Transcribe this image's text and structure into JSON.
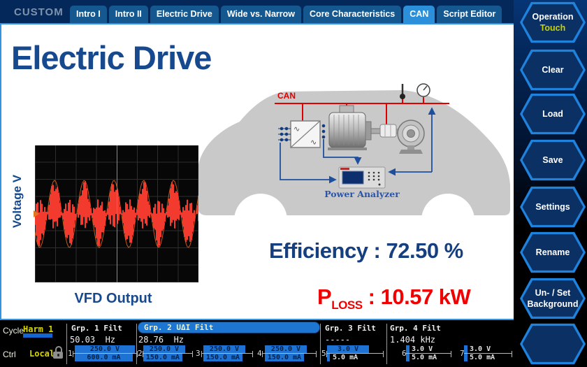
{
  "topbar": {
    "brand": "CUSTOM",
    "tabs": [
      {
        "label": "Intro I",
        "active": false
      },
      {
        "label": "Intro II",
        "active": false
      },
      {
        "label": "Electric Drive",
        "active": false
      },
      {
        "label": "Wide vs. Narrow",
        "active": false
      },
      {
        "label": "Core Characteristics",
        "active": false
      },
      {
        "label": "CAN",
        "active": true
      },
      {
        "label": "Script Editor",
        "active": false
      }
    ]
  },
  "sidebar": {
    "buttons": [
      {
        "label": "Operation",
        "accent": "Touch"
      },
      {
        "label": "Clear"
      },
      {
        "label": "Load"
      },
      {
        "label": "Save"
      },
      {
        "label": "Settings"
      },
      {
        "label": "Rename"
      },
      {
        "label": "Un- / Set",
        "label2": "Background"
      },
      {
        "label": ""
      }
    ]
  },
  "content": {
    "title": "Electric Drive",
    "diagram": {
      "can_label": "CAN",
      "analyzer_label": "Power Analyzer"
    },
    "scope": {
      "type": "line",
      "description": "PWM voltage waveform with sinusoidal envelope",
      "axis_label": "Voltage V",
      "caption": "VFD Output",
      "cycles": 5.5,
      "trace_color": "#f23b2e",
      "envelope_color": "#c85818"
    },
    "efficiency_text": "Efficiency : 72.50 %",
    "ploss_p": "P",
    "ploss_sub": "LOSS",
    "ploss_rest": " : 10.57 kW"
  },
  "statusbar": {
    "cycle_label": "Cycle",
    "cycle_value": "Harm 1",
    "ctrl_label": "Ctrl",
    "ctrl_value": "Local",
    "groups": [
      {
        "name": "Grp. 1 Filt",
        "freq": "50.03  Hz",
        "selected": false
      },
      {
        "name": "Grp. 2 UΔI Filt",
        "freq": "28.76  Hz",
        "selected": true
      },
      {
        "name": "Grp. 3 Filt",
        "freq": "-----",
        "selected": false
      },
      {
        "name": "Grp. 4 Filt",
        "freq": "1.404 kHz",
        "selected": false
      }
    ],
    "channels": [
      {
        "num": "1",
        "v": "250.0 V",
        "a": "600.0 mA"
      },
      {
        "num": "2",
        "v": "250.0 V",
        "a": "150.0 mA"
      },
      {
        "num": "3",
        "v": "250.0 V",
        "a": "150.0 mA"
      },
      {
        "num": "4",
        "v": "250.0 V",
        "a": "150.0 mA"
      },
      {
        "num": "5",
        "v": "3.0 V",
        "a": "5.0 mA"
      },
      {
        "num": "6",
        "v": "3.0 V",
        "a": "5.0 mA"
      },
      {
        "num": "7",
        "v": "3.0 V",
        "a": "5.0 mA"
      }
    ]
  }
}
